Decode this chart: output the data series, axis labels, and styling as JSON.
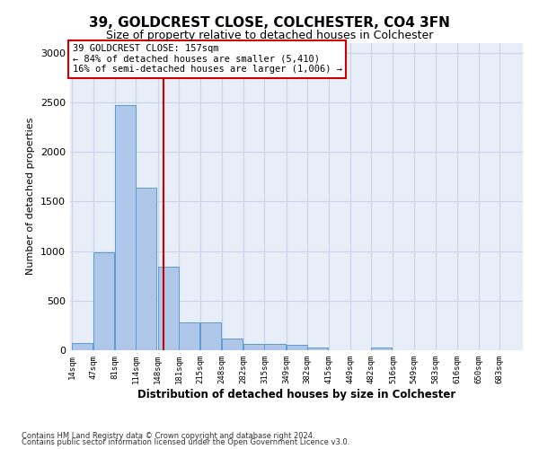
{
  "title": "39, GOLDCREST CLOSE, COLCHESTER, CO4 3FN",
  "subtitle": "Size of property relative to detached houses in Colchester",
  "xlabel": "Distribution of detached houses by size in Colchester",
  "ylabel": "Number of detached properties",
  "footnote1": "Contains HM Land Registry data © Crown copyright and database right 2024.",
  "footnote2": "Contains public sector information licensed under the Open Government Licence v3.0.",
  "annotation_title": "39 GOLDCREST CLOSE: 157sqm",
  "annotation_line1": "← 84% of detached houses are smaller (5,410)",
  "annotation_line2": "16% of semi-detached houses are larger (1,006) →",
  "bar_bins": [
    14,
    47,
    81,
    114,
    148,
    181,
    215,
    248,
    282,
    315,
    349,
    382,
    415,
    449,
    482,
    516,
    549,
    583,
    616,
    650,
    683
  ],
  "bin_width": 33,
  "bar_heights": [
    75,
    990,
    2470,
    1640,
    840,
    280,
    280,
    120,
    65,
    60,
    55,
    30,
    0,
    0,
    25,
    0,
    0,
    0,
    0,
    0,
    0
  ],
  "bar_color": "#aec6e8",
  "bar_edge_color": "#5b9bd5",
  "vline_x": 157,
  "vline_color": "#cc0000",
  "grid_color": "#c8d4e8",
  "background_color": "#e8eef8",
  "ylim_max": 3100,
  "yticks": [
    0,
    500,
    1000,
    1500,
    2000,
    2500,
    3000
  ]
}
